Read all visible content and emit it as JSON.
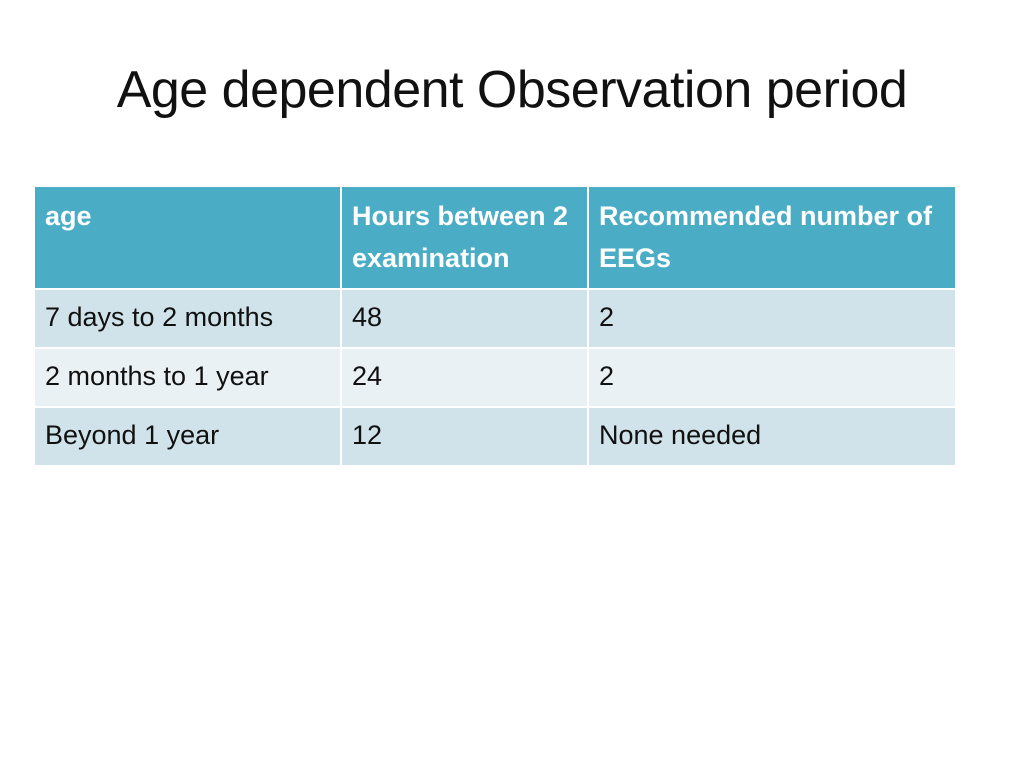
{
  "slide": {
    "title": "Age dependent Observation period"
  },
  "table": {
    "headers": [
      "age",
      "Hours between 2 examination",
      "Recommended number of EEGs"
    ],
    "rows": [
      [
        "7 days to 2 months",
        "48",
        "2"
      ],
      [
        "2 months to 1 year",
        "24",
        "2"
      ],
      [
        "Beyond 1 year",
        "12",
        "None needed"
      ]
    ]
  },
  "colors": {
    "header_bg": "#4bacc6",
    "header_text": "#ffffff",
    "row_odd_bg": "#d0e3ea",
    "row_even_bg": "#e9f1f5"
  }
}
